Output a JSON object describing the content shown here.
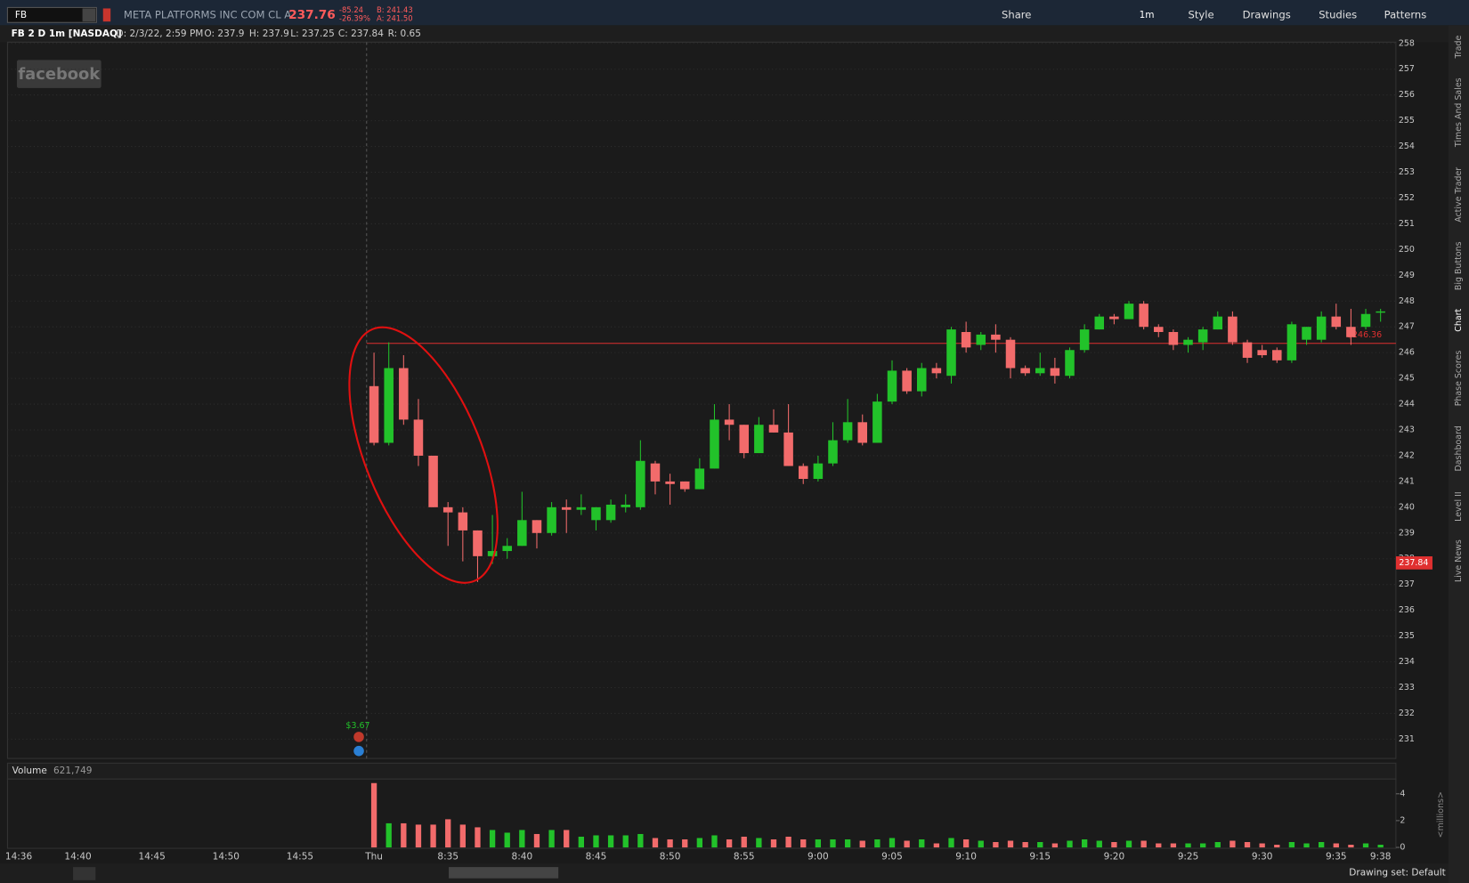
{
  "toolbar": {
    "symbol": "FB",
    "company": "META PLATFORMS INC COM CL A",
    "last": "237.76",
    "change": "-85.24",
    "change_pct": "-26.39%",
    "bid": "B: 241.43",
    "ask": "A: 241.50",
    "aggregation": "1m",
    "buttons": [
      "Share",
      "Style",
      "Drawings",
      "Studies",
      "Patterns"
    ]
  },
  "info_bar": [
    "FB 2 D 1m [NASDAQ]",
    "D: 2/3/22, 2:59 PM",
    "O: 237.9",
    "H: 237.9",
    "L: 237.25",
    "C: 237.84",
    "R: 0.65"
  ],
  "watermark": "facebook",
  "side_tabs": [
    "Trade",
    "Times And Sales",
    "Active Trader",
    "Big Buttons",
    "Chart",
    "Phase Scores",
    "Dashboard",
    "Level II",
    "Live News"
  ],
  "chart_data": {
    "type": "candlestick",
    "up_color": "#22c22a",
    "down_color": "#f26b6b",
    "x": [
      "8:30",
      "8:31",
      "8:32",
      "8:33",
      "8:34",
      "8:35",
      "8:36",
      "8:37",
      "8:38",
      "8:39",
      "8:40",
      "8:41",
      "8:42",
      "8:43",
      "8:44",
      "8:45",
      "8:46",
      "8:47",
      "8:48",
      "8:49",
      "8:50",
      "8:51",
      "8:52",
      "8:53",
      "8:54",
      "8:55",
      "8:56",
      "8:57",
      "8:58",
      "8:59",
      "9:00",
      "9:01",
      "9:02",
      "9:03",
      "9:04",
      "9:05",
      "9:06",
      "9:07",
      "9:08",
      "9:09",
      "9:10",
      "9:11",
      "9:12",
      "9:13",
      "9:14",
      "9:15",
      "9:16",
      "9:17",
      "9:18",
      "9:19",
      "9:20",
      "9:21",
      "9:22",
      "9:23",
      "9:24",
      "9:25",
      "9:26",
      "9:27",
      "9:28",
      "9:29",
      "9:30",
      "9:31",
      "9:32",
      "9:33",
      "9:34",
      "9:35",
      "9:36",
      "9:37",
      "9:38"
    ],
    "open": [
      244.7,
      242.5,
      245.4,
      243.4,
      242.0,
      240.0,
      239.8,
      239.1,
      238.1,
      238.3,
      238.5,
      239.5,
      239.0,
      240.0,
      239.9,
      239.5,
      239.5,
      240.0,
      240.0,
      241.7,
      241.0,
      241.0,
      240.7,
      241.5,
      243.4,
      243.2,
      242.1,
      243.2,
      242.9,
      241.6,
      241.1,
      241.7,
      242.6,
      243.3,
      242.5,
      244.1,
      245.3,
      244.5,
      245.4,
      245.1,
      246.8,
      246.3,
      246.7,
      246.5,
      245.4,
      245.2,
      245.4,
      245.1,
      246.1,
      246.9,
      247.4,
      247.3,
      247.9,
      247.0,
      246.8,
      246.3,
      246.4,
      246.9,
      247.4,
      246.4,
      246.1,
      246.1,
      245.7,
      246.5,
      246.5,
      247.4,
      247.0,
      247.0,
      247.55
    ],
    "high": [
      246.0,
      246.4,
      245.9,
      244.2,
      242.0,
      240.2,
      240.0,
      239.1,
      239.7,
      238.8,
      240.6,
      239.5,
      240.2,
      240.3,
      240.5,
      240.0,
      240.3,
      240.5,
      242.6,
      241.8,
      241.3,
      241.0,
      241.9,
      244.0,
      244.0,
      243.2,
      243.5,
      243.8,
      244.0,
      241.7,
      242.0,
      243.3,
      244.2,
      243.6,
      244.4,
      245.7,
      245.4,
      245.6,
      245.6,
      247.0,
      247.2,
      246.8,
      247.1,
      246.6,
      245.5,
      246.0,
      245.8,
      246.2,
      247.1,
      247.5,
      247.5,
      248.0,
      248.0,
      247.1,
      246.9,
      246.6,
      247.0,
      247.6,
      247.6,
      246.5,
      246.3,
      246.2,
      247.2,
      247.0,
      247.6,
      247.9,
      247.7,
      247.7,
      247.7
    ],
    "low": [
      242.4,
      242.4,
      243.2,
      241.6,
      240.0,
      238.5,
      237.9,
      237.1,
      237.8,
      238.0,
      238.5,
      238.4,
      238.9,
      239.0,
      239.7,
      239.1,
      239.4,
      239.8,
      239.9,
      240.5,
      240.1,
      240.6,
      240.7,
      241.5,
      242.6,
      241.9,
      242.1,
      242.9,
      241.6,
      240.9,
      241.0,
      241.6,
      242.5,
      242.4,
      242.5,
      244.0,
      244.4,
      244.3,
      245.0,
      244.8,
      246.0,
      246.1,
      246.0,
      245.0,
      245.1,
      245.1,
      244.8,
      245.0,
      246.0,
      246.9,
      247.1,
      247.3,
      246.9,
      246.6,
      246.1,
      246.0,
      246.1,
      246.9,
      246.3,
      245.6,
      245.8,
      245.6,
      245.6,
      246.3,
      246.4,
      246.9,
      246.3,
      246.9,
      247.2
    ],
    "close": [
      242.5,
      245.4,
      243.4,
      242.0,
      240.0,
      239.8,
      239.1,
      238.1,
      238.3,
      238.5,
      239.5,
      239.0,
      240.0,
      239.9,
      240.0,
      240.0,
      240.1,
      240.1,
      241.8,
      241.0,
      240.9,
      240.7,
      241.5,
      243.4,
      243.2,
      242.1,
      243.2,
      242.9,
      241.6,
      241.1,
      241.7,
      242.6,
      243.3,
      242.5,
      244.1,
      245.3,
      244.5,
      245.4,
      245.2,
      246.9,
      246.2,
      246.7,
      246.5,
      245.4,
      245.2,
      245.4,
      245.1,
      246.1,
      246.9,
      247.4,
      247.3,
      247.9,
      247.0,
      246.8,
      246.3,
      246.5,
      246.9,
      247.4,
      246.4,
      245.8,
      245.9,
      245.7,
      247.1,
      247.0,
      247.4,
      247.0,
      246.6,
      247.5,
      247.6
    ],
    "ylim": [
      230.25,
      258.05
    ],
    "yticks": [
      231,
      232,
      233,
      234,
      235,
      236,
      237,
      238,
      239,
      240,
      241,
      242,
      243,
      244,
      245,
      246,
      247,
      248,
      249,
      250,
      251,
      252,
      253,
      254,
      255,
      256,
      257,
      258
    ],
    "xticks": [
      "14:36",
      "14:40",
      "14:45",
      "14:50",
      "14:55",
      {
        "value": "8:30",
        "label": "Thu"
      },
      "8:35",
      "8:40",
      "8:45",
      "8:50",
      "8:55",
      "9:00",
      "9:05",
      "9:10",
      "9:15",
      "9:20",
      "9:25",
      "9:30",
      "9:35",
      "9:38"
    ],
    "xlim": [
      "14:36",
      "9:38"
    ],
    "price_line": {
      "value": 246.36,
      "label": "$246.36"
    },
    "last_price": {
      "value": 237.84,
      "label": "237.84"
    },
    "event_label": "$3.67",
    "volume": {
      "title": "Volume",
      "total": "621,749",
      "axis_label": "<millions>",
      "ylim": [
        0,
        5.1
      ],
      "yticks": [
        0,
        2,
        4
      ],
      "values": [
        4.8,
        1.8,
        1.8,
        1.7,
        1.7,
        2.1,
        1.7,
        1.5,
        1.3,
        1.1,
        1.3,
        1.0,
        1.3,
        1.3,
        0.8,
        0.9,
        0.9,
        0.9,
        1.0,
        0.7,
        0.6,
        0.6,
        0.7,
        0.9,
        0.6,
        0.8,
        0.7,
        0.6,
        0.8,
        0.6,
        0.6,
        0.6,
        0.6,
        0.5,
        0.6,
        0.7,
        0.5,
        0.6,
        0.3,
        0.7,
        0.6,
        0.5,
        0.4,
        0.5,
        0.4,
        0.4,
        0.3,
        0.5,
        0.6,
        0.5,
        0.4,
        0.5,
        0.5,
        0.3,
        0.3,
        0.3,
        0.3,
        0.4,
        0.5,
        0.4,
        0.3,
        0.2,
        0.4,
        0.3,
        0.4,
        0.3,
        0.2,
        0.3,
        0.2
      ]
    }
  },
  "footer": {
    "drawing_set": "Drawing set: Default"
  }
}
